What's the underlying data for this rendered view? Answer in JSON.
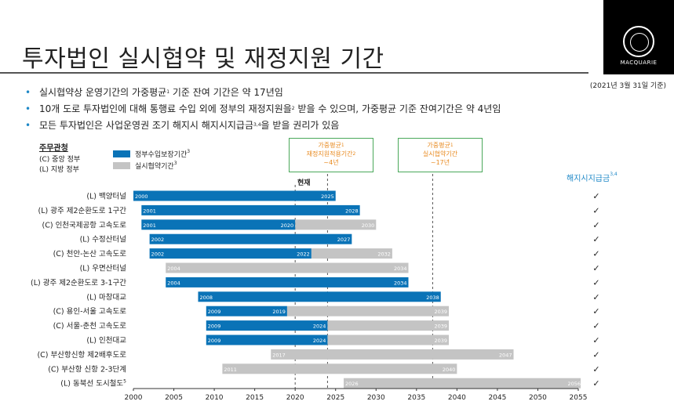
{
  "page": {
    "title": "투자법인 실시협약 및 재정지원 기간",
    "date_note": "(2021년 3월 31일 기준)",
    "logo_text": "MACQUARIE",
    "bullets": [
      {
        "text": "실시협약상 운영기간의 가중평균",
        "sup": "1",
        "text2": " 기준 잔여 기간은 약 17년임"
      },
      {
        "text": "10개 도로 투자법인에 대해 통행료 수입 외에 정부의 재정지원을",
        "sup": "2",
        "text2": " 받을 수 있으며, 가중평균 기준 잔여기간은 약 4년임"
      },
      {
        "text": "모든 투자법인은 사업운영권 조기 해지시 해지시지급금",
        "sup": "3,4",
        "text2": "을 받을 권리가 있음"
      }
    ],
    "legend": {
      "title": "주무관청",
      "c_label": "(C) 중앙 정부",
      "l_label": "(L) 지방 정부",
      "blue_label": "정부수입보장기간",
      "blue_sup": "3",
      "gray_label": "실시협약기간",
      "gray_sup": "3"
    },
    "callout_left": {
      "line1": "가중평균",
      "line1_sup": "1",
      "line2": "재정지원적용기간",
      "line2_sup": "2",
      "line3": "~4년"
    },
    "callout_right": {
      "line1": "가중평균",
      "line1_sup": "1",
      "line2": "실시협약기간",
      "line3": "~17년"
    },
    "now_label": "현재",
    "termination_label": "해지시지급금",
    "termination_sup": "3,4",
    "check_mark": "✓",
    "colors": {
      "blue": "#0a73b7",
      "gray": "#c4c4c4",
      "accent": "#1e88c7",
      "callout_border": "#4aa85a",
      "callout_text": "#e8891e"
    }
  },
  "chart_data": {
    "type": "bar",
    "orientation": "horizontal",
    "xlim": [
      2000,
      2055
    ],
    "xticks": [
      2000,
      2005,
      2010,
      2015,
      2020,
      2025,
      2030,
      2035,
      2040,
      2045,
      2050,
      2055
    ],
    "reference_lines": [
      2020,
      2024,
      2037
    ],
    "rows": [
      {
        "label": "(L) 백양터널",
        "blue": [
          2000,
          2025
        ],
        "gray": null,
        "labels": [
          "2000",
          "2025"
        ]
      },
      {
        "label": "(L) 광주 제2순환도로 1구간",
        "blue": [
          2001,
          2028
        ],
        "gray": null,
        "labels": [
          "2001",
          "2028"
        ]
      },
      {
        "label": "(C) 인천국제공항 고속도로",
        "blue": [
          2001,
          2020
        ],
        "gray": [
          2020,
          2030
        ],
        "labels": [
          "2001",
          "2020",
          "2030"
        ]
      },
      {
        "label": "(L) 수정산터널",
        "blue": [
          2002,
          2027
        ],
        "gray": null,
        "labels": [
          "2002",
          "2027"
        ]
      },
      {
        "label": "(C) 천안-논산 고속도로",
        "blue": [
          2002,
          2022
        ],
        "gray": [
          2022,
          2032
        ],
        "labels": [
          "2002",
          "2022",
          "2032"
        ]
      },
      {
        "label": "(L) 우면산터널",
        "blue": null,
        "gray": [
          2004,
          2034
        ],
        "labels": [
          "2004",
          "2034"
        ]
      },
      {
        "label": "(L) 광주 제2순환도로 3-1구간",
        "blue": [
          2004,
          2034
        ],
        "gray": null,
        "labels": [
          "2004",
          "2034"
        ]
      },
      {
        "label": "(L) 마창대교",
        "blue": [
          2008,
          2038
        ],
        "gray": null,
        "labels": [
          "2008",
          "2038"
        ]
      },
      {
        "label": "(C) 용인-서울 고속도로",
        "blue": [
          2009,
          2019
        ],
        "gray": [
          2019,
          2039
        ],
        "labels": [
          "2009",
          "2019",
          "2039"
        ]
      },
      {
        "label": "(C) 서울-춘천 고속도로",
        "blue": [
          2009,
          2024
        ],
        "gray": [
          2024,
          2039
        ],
        "labels": [
          "2009",
          "2024",
          "2039"
        ]
      },
      {
        "label": "(L) 인천대교",
        "blue": [
          2009,
          2024
        ],
        "gray": [
          2024,
          2039
        ],
        "labels": [
          "2009",
          "2024",
          "2039"
        ]
      },
      {
        "label": "(C) 부산항신항 제2배후도로",
        "blue": null,
        "gray": [
          2017,
          2047
        ],
        "labels": [
          "2017",
          "2047"
        ]
      },
      {
        "label": "(C) 부산항 신항 2-3단계",
        "blue": null,
        "gray": [
          2011,
          2040
        ],
        "labels": [
          "2011",
          "2040"
        ]
      },
      {
        "label": "(L) 동북선 도시철도",
        "label_sup": "5",
        "blue": null,
        "gray": [
          2026,
          2056
        ],
        "labels": [
          "2026",
          "2056"
        ]
      }
    ]
  }
}
